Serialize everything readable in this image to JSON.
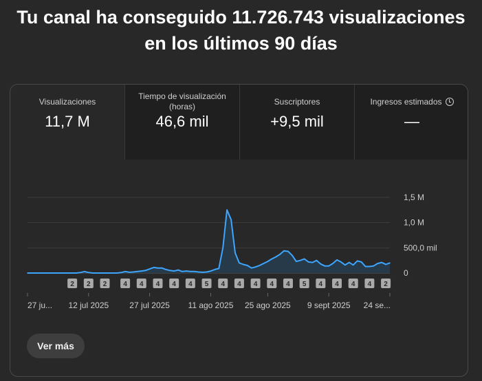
{
  "headline": {
    "line1": "Tu canal ha conseguido 11.726.743 visualizaciones",
    "line2": "en los últimos 90 días"
  },
  "metrics": [
    {
      "label": "Visualizaciones",
      "value": "11,7 M"
    },
    {
      "label": "Tiempo de visualización (horas)",
      "value": "46,6 mil"
    },
    {
      "label": "Suscriptores",
      "value": "+9,5 mil"
    },
    {
      "label": "Ingresos estimados",
      "value": "—",
      "icon": "clock-icon"
    }
  ],
  "more_button": {
    "label": "Ver más"
  },
  "colors": {
    "line": "#3ea6ff",
    "area": "#263a4a",
    "marker": "#aaaaaa"
  },
  "chart_data": {
    "type": "area",
    "y_ticks": [
      "1,5 M",
      "1,0 M",
      "500,0 mil",
      "0"
    ],
    "y_tick_values": [
      1500000,
      1000000,
      500000,
      0
    ],
    "ylim": [
      0,
      1500000
    ],
    "x_tick_labels": [
      "27 ju...",
      "12 jul 2025",
      "27 jul 2025",
      "11 ago 2025",
      "25 ago 2025",
      "9 sept 2025",
      "24 se..."
    ],
    "x_tick_days": [
      0,
      15,
      30,
      45,
      59,
      74,
      89
    ],
    "series": [
      {
        "values": [
          0,
          0,
          0,
          0,
          0,
          0,
          0,
          0,
          0,
          0,
          0,
          0,
          0,
          10000,
          30000,
          10000,
          0,
          0,
          0,
          0,
          0,
          0,
          0,
          10000,
          30000,
          15000,
          20000,
          30000,
          40000,
          50000,
          80000,
          110000,
          100000,
          100000,
          70000,
          50000,
          40000,
          60000,
          30000,
          40000,
          30000,
          30000,
          20000,
          15000,
          20000,
          40000,
          70000,
          90000,
          500000,
          1250000,
          1060000,
          400000,
          200000,
          170000,
          150000,
          100000,
          120000,
          150000,
          190000,
          230000,
          280000,
          320000,
          370000,
          440000,
          430000,
          350000,
          230000,
          250000,
          280000,
          220000,
          210000,
          250000,
          180000,
          140000,
          140000,
          190000,
          260000,
          220000,
          160000,
          210000,
          160000,
          240000,
          220000,
          130000,
          130000,
          140000,
          190000,
          210000,
          170000,
          200000
        ]
      }
    ],
    "markers": [
      {
        "day": 11,
        "label": "2"
      },
      {
        "day": 15,
        "label": "2"
      },
      {
        "day": 19,
        "label": "2"
      },
      {
        "day": 24,
        "label": "4"
      },
      {
        "day": 28,
        "label": "4"
      },
      {
        "day": 32,
        "label": "4"
      },
      {
        "day": 36,
        "label": "4"
      },
      {
        "day": 40,
        "label": "4"
      },
      {
        "day": 44,
        "label": "5"
      },
      {
        "day": 48,
        "label": "4"
      },
      {
        "day": 52,
        "label": "4"
      },
      {
        "day": 56,
        "label": "4"
      },
      {
        "day": 60,
        "label": "4"
      },
      {
        "day": 64,
        "label": "4"
      },
      {
        "day": 68,
        "label": "5"
      },
      {
        "day": 72,
        "label": "4"
      },
      {
        "day": 76,
        "label": "4"
      },
      {
        "day": 80,
        "label": "4"
      },
      {
        "day": 84,
        "label": "4"
      },
      {
        "day": 88,
        "label": "2"
      }
    ]
  }
}
